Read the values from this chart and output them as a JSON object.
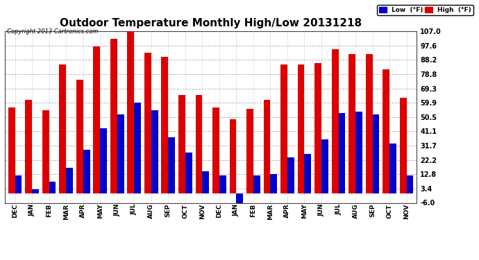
{
  "title": "Outdoor Temperature Monthly High/Low 20131218",
  "copyright": "Copyright 2013 Cartronics.com",
  "categories": [
    "DEC",
    "JAN",
    "FEB",
    "MAR",
    "APR",
    "MAY",
    "JUN",
    "JUL",
    "AUG",
    "SEP",
    "OCT",
    "NOV",
    "DEC",
    "JAN",
    "FEB",
    "MAR",
    "APR",
    "MAY",
    "JUN",
    "JUL",
    "AUG",
    "SEP",
    "OCT",
    "NOV"
  ],
  "high": [
    57,
    62,
    55,
    85,
    75,
    97,
    102,
    107,
    93,
    90,
    65,
    65,
    57,
    49,
    56,
    62,
    85,
    85,
    86,
    95,
    92,
    92,
    82,
    63
  ],
  "low": [
    12,
    3,
    8,
    17,
    29,
    43,
    52,
    60,
    55,
    37,
    27,
    15,
    12,
    -9,
    12,
    13,
    24,
    26,
    36,
    53,
    54,
    52,
    33,
    12
  ],
  "ylim": [
    -6.0,
    107.0
  ],
  "yticks": [
    -6.0,
    3.4,
    12.8,
    22.2,
    31.7,
    41.1,
    50.5,
    59.9,
    69.3,
    78.8,
    88.2,
    97.6,
    107.0
  ],
  "high_color": "#dd0000",
  "low_color": "#0000cc",
  "bg_color": "#ffffff",
  "grid_color": "#999999",
  "title_fontsize": 11,
  "bar_width": 0.4,
  "legend_low_label": "Low  (°F)",
  "legend_high_label": "High  (°F)"
}
